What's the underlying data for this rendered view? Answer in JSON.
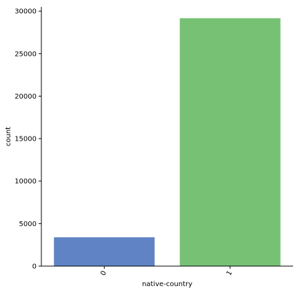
{
  "chart_data": {
    "type": "bar",
    "categories": [
      "0",
      "1"
    ],
    "values": [
      3390,
      29170
    ],
    "xlabel": "native-country",
    "ylabel": "count",
    "ylim": [
      0,
      30500
    ],
    "yticks": [
      0,
      5000,
      10000,
      15000,
      20000,
      25000,
      30000
    ],
    "ytick_labels": [
      "0",
      "5000",
      "10000",
      "15000",
      "20000",
      "25000",
      "30000"
    ],
    "colors": [
      "#5f83c4",
      "#77c175"
    ],
    "grid": false,
    "legend": "none",
    "xtick_rotation": "rotated"
  }
}
